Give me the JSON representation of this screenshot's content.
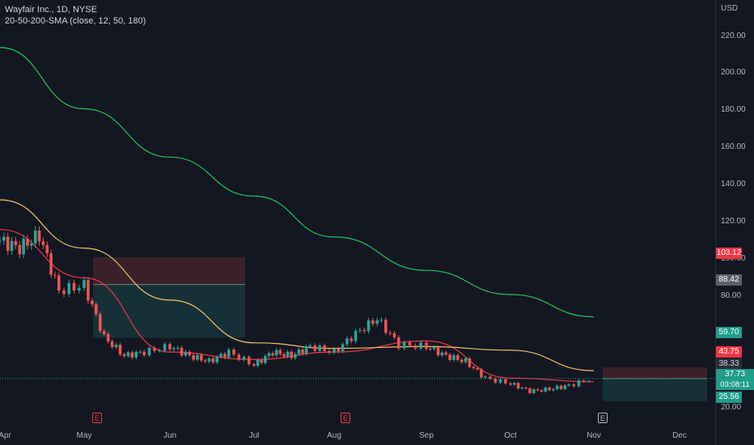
{
  "header": {
    "title": "Wayfair Inc., 1D, NYSE",
    "indicator": "20-50-200-SMA (close, 12, 50, 180)"
  },
  "currency": "USD",
  "price_axis": [
    "220.00",
    "200.00",
    "180.00",
    "160.00",
    "140.00",
    "120.00",
    "100.00",
    "80.00",
    "20.00"
  ],
  "tags": {
    "red_top": "103.12",
    "gray": "88.42",
    "green_mid": "59.70",
    "red_mid": "43.75",
    "dark": "38.33",
    "last": "37.73",
    "countdown": "03:08:11",
    "green_bottom": "25.56"
  },
  "time_axis": [
    "Apr",
    "May",
    "Jun",
    "Jul",
    "Aug",
    "Sep",
    "Oct",
    "Nov",
    "Dec"
  ],
  "earnings_marker": "E",
  "colors": {
    "background": "#131722",
    "up": "#26a69a",
    "down": "#ef5350",
    "sma_fast": "#f23645",
    "sma_mid": "#f5c26b",
    "sma_slow": "#22c55e",
    "long_profit_zone": "rgba(38,166,154,0.18)",
    "long_stop_zone": "rgba(239,83,80,0.18)"
  },
  "chart_data": {
    "type": "candlestick",
    "title": "Wayfair Inc., 1D, NYSE",
    "ylabel": "USD",
    "ylim": [
      10,
      230
    ],
    "x_range": [
      "Apr",
      "Dec"
    ],
    "series": [
      {
        "name": "Price",
        "kind": "candles",
        "x": [
          "Apr",
          "Apr 8",
          "Apr 15",
          "Apr 22",
          "May",
          "May 8",
          "May 15",
          "May 22",
          "Jun",
          "Jun 8",
          "Jun 15",
          "Jun 22",
          "Jul",
          "Jul 8",
          "Jul 15",
          "Jul 22",
          "Aug",
          "Aug 8",
          "Aug 15",
          "Aug 22",
          "Sep",
          "Sep 8",
          "Sep 15",
          "Sep 22",
          "Oct",
          "Oct 8",
          "Oct 15",
          "Oct 22",
          "Nov"
        ],
        "close": [
          112,
          108,
          115,
          85,
          88,
          60,
          50,
          52,
          55,
          50,
          47,
          52,
          45,
          52,
          50,
          55,
          52,
          62,
          70,
          56,
          55,
          50,
          47,
          38,
          35,
          31,
          32,
          34,
          38
        ]
      },
      {
        "name": "SMA 12",
        "x": [
          "Apr",
          "May",
          "Jun",
          "Jul",
          "Aug",
          "Sep",
          "Oct",
          "Nov"
        ],
        "values": [
          118,
          92,
          52,
          48,
          52,
          58,
          38,
          36
        ]
      },
      {
        "name": "SMA 50",
        "x": [
          "Apr",
          "May",
          "Jun",
          "Jul",
          "Aug",
          "Sep",
          "Oct",
          "Nov"
        ],
        "values": [
          134,
          108,
          80,
          57,
          54,
          55,
          53,
          42
        ]
      },
      {
        "name": "SMA 180",
        "x": [
          "Apr",
          "May",
          "Jun",
          "Jul",
          "Aug",
          "Sep",
          "Oct",
          "Nov"
        ],
        "values": [
          216,
          183,
          157,
          136,
          114,
          96,
          83,
          71
        ]
      }
    ],
    "positions": [
      {
        "type": "long",
        "entry": 88.42,
        "stop": 103.12,
        "target": 59.7,
        "from": "May",
        "to": "Jul"
      },
      {
        "type": "long",
        "entry": 37.73,
        "stop": 43.75,
        "target": 25.56,
        "from": "Nov",
        "to": "Dec"
      }
    ],
    "last_price": 37.73,
    "earnings": [
      "May",
      "Aug",
      "Nov"
    ]
  }
}
